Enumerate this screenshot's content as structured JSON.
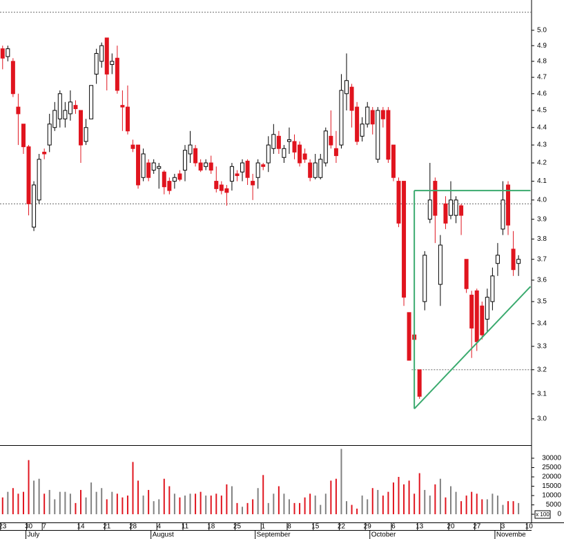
{
  "chart_data": {
    "type": "candlestick",
    "open": [
      4.88,
      4.83,
      4.8,
      4.52,
      4.42,
      4.29,
      3.86,
      4.0,
      4.26,
      4.3,
      4.4,
      4.45,
      4.45,
      4.48,
      4.53,
      4.5,
      4.32,
      4.45,
      4.72,
      4.8,
      4.95,
      4.78,
      4.82,
      4.53,
      4.52,
      4.3,
      4.3,
      4.12,
      4.2,
      4.16,
      4.17,
      4.15,
      4.1,
      4.1,
      4.14,
      4.16,
      4.25,
      4.28,
      4.2,
      4.18,
      4.2,
      4.1,
      4.08,
      4.06,
      4.1,
      4.14,
      4.15,
      4.21,
      4.1,
      4.12,
      4.19,
      4.2,
      4.28,
      4.35,
      4.23,
      4.32,
      4.32,
      4.3,
      4.25,
      4.2,
      4.12,
      4.12,
      4.2,
      4.35,
      4.28,
      4.3,
      4.6,
      4.64,
      4.52,
      4.35,
      4.42,
      4.5,
      4.22,
      4.5,
      4.5,
      4.3,
      4.1,
      4.1,
      3.45,
      3.35,
      3.2,
      3.5,
      3.9,
      4.1,
      3.58,
      3.98,
      3.92,
      3.92,
      3.97,
      3.7,
      3.53,
      3.55,
      3.48,
      3.42,
      3.5,
      3.68,
      3.85,
      4.08,
      3.75,
      3.68
    ],
    "high": [
      4.9,
      4.9,
      4.82,
      4.6,
      4.42,
      4.3,
      4.1,
      4.25,
      4.28,
      4.48,
      4.55,
      4.62,
      4.55,
      4.62,
      4.56,
      4.5,
      4.45,
      4.65,
      4.88,
      4.92,
      4.95,
      4.85,
      4.9,
      4.62,
      4.65,
      4.33,
      4.3,
      4.28,
      4.22,
      4.22,
      4.2,
      4.16,
      4.12,
      4.14,
      4.16,
      4.3,
      4.38,
      4.3,
      4.22,
      4.22,
      4.24,
      4.18,
      4.1,
      4.08,
      4.2,
      4.16,
      4.22,
      4.22,
      4.14,
      4.22,
      4.2,
      4.35,
      4.42,
      4.38,
      4.3,
      4.4,
      4.36,
      4.32,
      4.28,
      4.22,
      4.25,
      4.25,
      4.4,
      4.5,
      4.38,
      4.72,
      4.85,
      4.66,
      4.55,
      4.46,
      4.55,
      4.52,
      4.52,
      4.52,
      4.52,
      4.3,
      4.12,
      4.1,
      3.45,
      3.36,
      3.2,
      3.74,
      4.2,
      4.12,
      3.82,
      4.02,
      4.1,
      4.02,
      3.98,
      3.7,
      3.55,
      3.56,
      3.5,
      3.56,
      3.66,
      3.78,
      4.1,
      4.1,
      3.84,
      3.72
    ],
    "low": [
      4.75,
      4.8,
      4.58,
      4.3,
      4.25,
      3.92,
      3.84,
      3.98,
      4.22,
      4.26,
      4.38,
      4.4,
      4.4,
      4.44,
      4.48,
      4.2,
      4.3,
      4.45,
      4.66,
      4.76,
      4.62,
      4.72,
      4.6,
      4.38,
      4.36,
      4.26,
      4.06,
      4.1,
      4.1,
      4.14,
      4.06,
      4.03,
      4.03,
      4.06,
      4.1,
      4.1,
      4.2,
      4.18,
      4.15,
      4.16,
      4.14,
      4.04,
      4.03,
      3.97,
      4.05,
      4.1,
      4.1,
      4.08,
      4.0,
      4.06,
      4.16,
      4.15,
      4.25,
      4.25,
      4.2,
      4.25,
      4.22,
      4.18,
      4.2,
      4.1,
      4.11,
      4.11,
      4.18,
      4.28,
      4.2,
      4.28,
      4.5,
      4.4,
      4.3,
      4.32,
      4.4,
      4.36,
      4.2,
      4.4,
      4.2,
      4.1,
      3.86,
      3.48,
      3.24,
      3.31,
      3.08,
      3.46,
      3.88,
      3.78,
      3.48,
      3.85,
      3.9,
      3.88,
      3.82,
      3.54,
      3.25,
      3.28,
      3.33,
      3.36,
      3.46,
      3.62,
      3.82,
      3.82,
      3.62,
      3.62
    ],
    "close": [
      4.82,
      4.88,
      4.6,
      4.48,
      4.29,
      3.98,
      4.08,
      4.22,
      4.25,
      4.42,
      4.5,
      4.6,
      4.5,
      4.55,
      4.51,
      4.3,
      4.4,
      4.65,
      4.85,
      4.9,
      4.72,
      4.8,
      4.62,
      4.52,
      4.38,
      4.28,
      4.08,
      4.25,
      4.12,
      4.2,
      4.18,
      4.07,
      4.05,
      4.12,
      4.11,
      4.27,
      4.3,
      4.2,
      4.16,
      4.2,
      4.16,
      4.06,
      4.05,
      4.04,
      4.18,
      4.13,
      4.2,
      4.12,
      4.08,
      4.2,
      4.18,
      4.3,
      4.36,
      4.28,
      4.28,
      4.33,
      4.26,
      4.2,
      4.22,
      4.12,
      4.2,
      4.22,
      4.38,
      4.3,
      4.24,
      4.62,
      4.68,
      4.5,
      4.32,
      4.42,
      4.52,
      4.42,
      4.5,
      4.45,
      4.22,
      4.12,
      3.88,
      3.52,
      3.24,
      3.33,
      3.09,
      3.72,
      4.0,
      3.92,
      3.77,
      3.88,
      4.0,
      4.0,
      3.92,
      3.56,
      3.38,
      3.32,
      3.35,
      3.52,
      3.62,
      3.72,
      4.0,
      3.87,
      3.65,
      3.7
    ],
    "volume": [
      9000,
      12000,
      14000,
      11000,
      12000,
      29000,
      18000,
      19000,
      11000,
      13000,
      8000,
      12000,
      12000,
      11000,
      6000,
      13000,
      9000,
      17000,
      12000,
      14000,
      8000,
      12000,
      11000,
      9000,
      10000,
      28000,
      18000,
      10000,
      13000,
      7000,
      8000,
      19000,
      15000,
      11000,
      9000,
      10000,
      11000,
      11000,
      12000,
      10000,
      10000,
      11000,
      10000,
      16000,
      15000,
      6000,
      4000,
      6000,
      8000,
      14000,
      21000,
      6000,
      11000,
      15000,
      11000,
      8000,
      6000,
      6000,
      9000,
      11000,
      10000,
      5000,
      11000,
      18000,
      19000,
      35000,
      7000,
      5000,
      3000,
      10000,
      8000,
      14000,
      13000,
      10000,
      12000,
      17000,
      20000,
      16000,
      18000,
      11000,
      22000,
      13000,
      10000,
      16000,
      19000,
      9000,
      15000,
      12000,
      7000,
      10000,
      12000,
      11000,
      8000,
      8000,
      11000,
      10000,
      5000,
      7000,
      7000,
      6000
    ],
    "up_color": "#ffffff",
    "down_color": "#e0141e",
    "volume_up_color": "#808080",
    "log_scale": true,
    "ylim": [
      2.898,
      5.203
    ],
    "yticks": [
      {
        "value": 3,
        "label": "3.0"
      },
      3.1,
      3.2,
      3.3,
      3.4,
      3.5,
      3.6,
      3.7,
      3.8,
      3.9,
      {
        "value": 4,
        "label": "4.0"
      },
      4.1,
      4.2,
      4.3,
      4.4,
      4.5,
      4.6,
      4.7,
      4.8,
      4.9,
      {
        "value": 5,
        "label": "5.0"
      }
    ],
    "volume_ylim": [
      -4400,
      35900
    ],
    "volume_yticks": [
      0,
      5000,
      10000,
      15000,
      20000,
      25000,
      30000
    ],
    "volume_unit": "x 100",
    "xlim": [
      -0.5,
      101.5
    ],
    "xticks": [
      {
        "value": 0,
        "label": "23"
      },
      {
        "value": 5,
        "label": "30"
      },
      {
        "value": 8,
        "label": "7"
      },
      {
        "value": 15,
        "label": "14"
      },
      {
        "value": 20,
        "label": "21"
      },
      {
        "value": 25,
        "label": "28"
      },
      {
        "value": 30,
        "label": "4"
      },
      {
        "value": 35,
        "label": "11"
      },
      {
        "value": 40,
        "label": "18"
      },
      {
        "value": 45,
        "label": "25"
      },
      {
        "value": 50,
        "label": "1"
      },
      {
        "value": 55,
        "label": "8"
      },
      {
        "value": 60,
        "label": "15"
      },
      {
        "value": 65,
        "label": "22"
      },
      {
        "value": 70,
        "label": "29"
      },
      {
        "value": 75,
        "label": "6"
      },
      {
        "value": 80,
        "label": "13"
      },
      {
        "value": 86,
        "label": "20"
      },
      {
        "value": 91,
        "label": "27"
      },
      {
        "value": 96,
        "label": "3"
      },
      {
        "value": 101,
        "label": "10"
      }
    ],
    "months": [
      {
        "value": 5,
        "label": "July"
      },
      {
        "value": 29,
        "label": "August"
      },
      {
        "value": 49,
        "label": "September"
      },
      {
        "value": 71,
        "label": "October"
      },
      {
        "value": 95,
        "label": "Novembe"
      }
    ],
    "reference_lines": [
      {
        "value": 5.12
      },
      {
        "value": 3.98
      },
      {
        "value": 3.2,
        "from": 78.5
      }
    ],
    "trendline_color": "#3aaa6e",
    "trendlines": [
      {
        "x": [
          79,
          79
        ],
        "y": [
          3.04,
          4.05
        ]
      },
      {
        "x": [
          79,
          101.3
        ],
        "y": [
          4.05,
          4.05
        ]
      },
      {
        "x": [
          79,
          101.3
        ],
        "y": [
          3.04,
          3.57
        ]
      }
    ]
  }
}
